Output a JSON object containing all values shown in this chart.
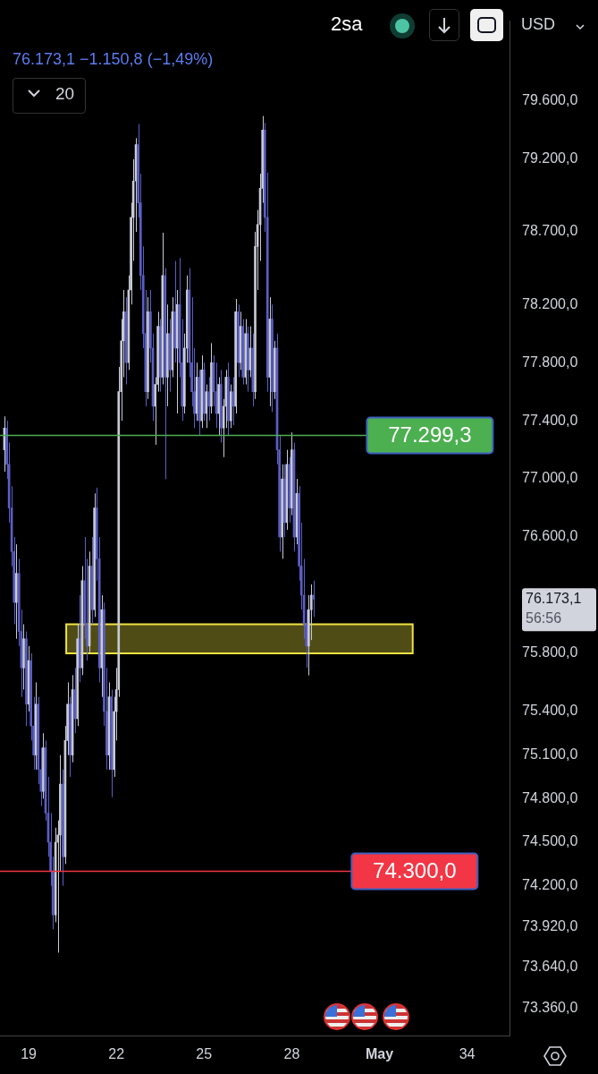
{
  "chart_data": {
    "type": "candlestick",
    "annotations": [
      "2sa",
      "76.173,1  −1.150,8 (−1,49%)",
      "20",
      "USD",
      "76.173,1",
      "56:56"
    ],
    "x": [
      18.17,
      18.25,
      18.33,
      18.42,
      18.5,
      18.58,
      18.67,
      18.75,
      18.83,
      18.92,
      19,
      19.08,
      19.17,
      19.25,
      19.33,
      19.42,
      19.5,
      19.58,
      19.67,
      19.75,
      19.83,
      19.92,
      20,
      20.08,
      20.17,
      20.25,
      20.33,
      20.42,
      20.5,
      20.58,
      20.67,
      20.75,
      20.83,
      20.92,
      21,
      21.08,
      21.17,
      21.25,
      21.33,
      21.42,
      21.5,
      21.58,
      21.67,
      21.75,
      21.83,
      21.92,
      22,
      22.08,
      22.17,
      22.25,
      22.33,
      22.42,
      22.5,
      22.58,
      22.67,
      22.75,
      22.83,
      22.92,
      23,
      23.08,
      23.17,
      23.25,
      23.33,
      23.42,
      23.5,
      23.58,
      23.67,
      23.75,
      23.83,
      23.92,
      24,
      24.08,
      24.17,
      24.25,
      24.33,
      24.42,
      24.5,
      24.58,
      24.67,
      24.75,
      24.83,
      24.92,
      25,
      25.08,
      25.17,
      25.25,
      25.33,
      25.42,
      25.5,
      25.58,
      25.67,
      25.75,
      25.83,
      25.92,
      26,
      26.08,
      26.17,
      26.25,
      26.33,
      26.42,
      26.5,
      26.58,
      26.67,
      26.75,
      26.83,
      26.92,
      27,
      27.08,
      27.17,
      27.25,
      27.33,
      27.42,
      27.5,
      27.58,
      27.67,
      27.75,
      27.83,
      27.92,
      28,
      28.08,
      28.17,
      28.25,
      28.33,
      28.42,
      28.5,
      28.58,
      28.67,
      28.75
    ],
    "ohlc": [
      [
        77200,
        77430,
        77050,
        77350
      ],
      [
        77350,
        77400,
        77000,
        77100
      ],
      [
        77100,
        77250,
        76700,
        76800
      ],
      [
        76800,
        76950,
        76400,
        76500
      ],
      [
        76500,
        76600,
        76000,
        76150
      ],
      [
        76150,
        76550,
        75900,
        76350
      ],
      [
        76350,
        76450,
        75850,
        75950
      ],
      [
        75950,
        76100,
        75500,
        75700
      ],
      [
        75700,
        76000,
        75550,
        75900
      ],
      [
        75900,
        75950,
        75300,
        75450
      ],
      [
        75450,
        75850,
        75400,
        75750
      ],
      [
        75750,
        75800,
        75200,
        75300
      ],
      [
        75300,
        75500,
        75000,
        75100
      ],
      [
        75100,
        75600,
        75000,
        75450
      ],
      [
        75450,
        75500,
        74900,
        75000
      ],
      [
        75000,
        75150,
        74750,
        74850
      ],
      [
        74850,
        75250,
        74800,
        75150
      ],
      [
        75150,
        75200,
        74650,
        74700
      ],
      [
        74700,
        74950,
        74400,
        74500
      ],
      [
        74500,
        74700,
        74200,
        74300
      ],
      [
        74300,
        74400,
        73900,
        74000
      ],
      [
        74000,
        74600,
        73950,
        74500
      ],
      [
        74500,
        74650,
        73740,
        74550
      ],
      [
        74550,
        75100,
        74300,
        74900
      ],
      [
        74900,
        75000,
        74200,
        74400
      ],
      [
        74400,
        75300,
        74350,
        75200
      ],
      [
        75200,
        75600,
        75100,
        75450
      ],
      [
        75450,
        75500,
        74950,
        75100
      ],
      [
        75100,
        75650,
        75050,
        75550
      ],
      [
        75550,
        75700,
        75250,
        75350
      ],
      [
        75350,
        76000,
        75300,
        75900
      ],
      [
        75900,
        76200,
        75600,
        75700
      ],
      [
        75700,
        76400,
        75650,
        76300
      ],
      [
        76300,
        76600,
        75900,
        76000
      ],
      [
        76000,
        76450,
        75750,
        75850
      ],
      [
        75850,
        76500,
        75800,
        76400
      ],
      [
        76400,
        76600,
        76000,
        76100
      ],
      [
        76100,
        76900,
        76050,
        76800
      ],
      [
        76800,
        76940,
        76300,
        76450
      ],
      [
        76450,
        76600,
        75600,
        75700
      ],
      [
        75700,
        76200,
        75500,
        76100
      ],
      [
        76100,
        76150,
        75300,
        75400
      ],
      [
        75400,
        75700,
        75000,
        75100
      ],
      [
        75100,
        75600,
        75000,
        75500
      ],
      [
        75500,
        75550,
        74810,
        75000
      ],
      [
        75000,
        75500,
        74950,
        75400
      ],
      [
        75400,
        75700,
        75200,
        75550
      ],
      [
        75550,
        77770,
        75500,
        77600
      ],
      [
        77600,
        78100,
        77400,
        77950
      ],
      [
        77950,
        78300,
        77700,
        78150
      ],
      [
        78150,
        78250,
        77650,
        77800
      ],
      [
        77800,
        78400,
        77750,
        78300
      ],
      [
        78300,
        78900,
        78200,
        78800
      ],
      [
        78800,
        79200,
        78500,
        79050
      ],
      [
        79050,
        79345,
        78700,
        79300
      ],
      [
        79300,
        79442,
        78800,
        78900
      ],
      [
        78900,
        79100,
        78300,
        78400
      ],
      [
        78400,
        78600,
        77900,
        78000
      ],
      [
        78000,
        78300,
        77500,
        77600
      ],
      [
        77600,
        78250,
        77550,
        78150
      ],
      [
        78150,
        78300,
        77800,
        77900
      ],
      [
        77900,
        78000,
        77400,
        77500
      ],
      [
        77500,
        77700,
        77235,
        77650
      ],
      [
        77650,
        78150,
        77600,
        78050
      ],
      [
        78050,
        78100,
        77600,
        77700
      ],
      [
        77700,
        78694,
        77650,
        78400
      ],
      [
        78400,
        78450,
        76998,
        77700
      ],
      [
        77700,
        78200,
        77500,
        78000
      ],
      [
        78000,
        78100,
        77600,
        77750
      ],
      [
        77750,
        78250,
        77700,
        78150
      ],
      [
        78150,
        78500,
        77800,
        77900
      ],
      [
        77900,
        78300,
        77450,
        78200
      ],
      [
        78200,
        78520,
        77700,
        77800
      ],
      [
        77800,
        78100,
        77400,
        77500
      ],
      [
        77500,
        78000,
        77450,
        77900
      ],
      [
        77900,
        78400,
        77800,
        78300
      ],
      [
        78300,
        78450,
        77700,
        77800
      ],
      [
        77800,
        78250,
        77500,
        77600
      ],
      [
        77600,
        77900,
        77350,
        77450
      ],
      [
        77450,
        77800,
        77400,
        77700
      ],
      [
        77700,
        77750,
        77300,
        77400
      ],
      [
        77400,
        77850,
        77350,
        77750
      ],
      [
        77750,
        77800,
        77400,
        77450
      ],
      [
        77450,
        77650,
        77350,
        77600
      ],
      [
        77600,
        77700,
        77400,
        77500
      ],
      [
        77500,
        77934,
        77450,
        77800
      ],
      [
        77800,
        77850,
        77500,
        77600
      ],
      [
        77600,
        77800,
        77350,
        77450
      ],
      [
        77450,
        77700,
        77300,
        77650
      ],
      [
        77650,
        77750,
        77250,
        77350
      ],
      [
        77350,
        77550,
        77150,
        77500
      ],
      [
        77500,
        77750,
        77350,
        77700
      ],
      [
        77700,
        77800,
        77300,
        77400
      ],
      [
        77400,
        77650,
        77350,
        77600
      ],
      [
        77600,
        77700,
        77370,
        77500
      ],
      [
        77500,
        78238,
        77450,
        78150
      ],
      [
        78150,
        78200,
        77700,
        77800
      ],
      [
        77800,
        78150,
        77750,
        78050
      ],
      [
        78050,
        78100,
        77650,
        77700
      ],
      [
        77700,
        78100,
        77650,
        78000
      ],
      [
        78000,
        78050,
        77600,
        77750
      ],
      [
        77750,
        78050,
        77700,
        77900
      ],
      [
        77900,
        78000,
        77500,
        77600
      ],
      [
        77600,
        78700,
        77550,
        78600
      ],
      [
        78600,
        78850,
        78300,
        78750
      ],
      [
        78750,
        79100,
        78500,
        79000
      ],
      [
        79000,
        79497,
        78900,
        79400
      ],
      [
        79400,
        79450,
        78700,
        78800
      ],
      [
        78800,
        79108,
        77600,
        77700
      ],
      [
        77700,
        78250,
        77500,
        78100
      ],
      [
        78100,
        78200,
        77460,
        77600
      ],
      [
        77600,
        77950,
        77550,
        77900
      ],
      [
        77900,
        78000,
        77100,
        77200
      ],
      [
        77200,
        77300,
        76500,
        76600
      ],
      [
        76600,
        77100,
        76450,
        77000
      ],
      [
        77000,
        77100,
        76600,
        76700
      ],
      [
        76700,
        77200,
        76650,
        77100
      ],
      [
        77100,
        77150,
        76700,
        76800
      ],
      [
        76800,
        77320,
        76750,
        77200
      ],
      [
        77200,
        77250,
        76500,
        76600
      ],
      [
        76600,
        77000,
        76550,
        76900
      ],
      [
        76900,
        76950,
        76300,
        76400
      ],
      [
        76400,
        76700,
        76100,
        76200
      ],
      [
        76200,
        76450,
        75900,
        76000
      ],
      [
        76000,
        76100,
        75700,
        75850
      ],
      [
        75850,
        76200,
        75648,
        76100
      ],
      [
        76100,
        76274,
        75891,
        76200
      ],
      [
        76200,
        76300,
        76050,
        76173.1
      ]
    ],
    "colors": [
      "#c8cad6",
      "#5b5fc4",
      "#5b5fc4",
      "#5b5fc4",
      "#5b5fc4",
      "#c8cad6",
      "#5b5fc4",
      "#5b5fc4",
      "#c8cad6",
      "#5b5fc4",
      "#c8cad6",
      "#5b5fc4",
      "#5b5fc4",
      "#c8cad6",
      "#5b5fc4",
      "#5b5fc4",
      "#c8cad6",
      "#5b5fc4",
      "#5b5fc4",
      "#5b5fc4",
      "#5b5fc4",
      "#c8cad6",
      "#c8cad6",
      "#c8cad6",
      "#5b5fc4",
      "#c8cad6",
      "#c8cad6",
      "#5b5fc4",
      "#c8cad6",
      "#5b5fc4",
      "#c8cad6",
      "#5b5fc4",
      "#c8cad6",
      "#5b5fc4",
      "#5b5fc4",
      "#c8cad6",
      "#5b5fc4",
      "#c8cad6",
      "#5b5fc4",
      "#5b5fc4",
      "#c8cad6",
      "#5b5fc4",
      "#5b5fc4",
      "#c8cad6",
      "#5b5fc4",
      "#c8cad6",
      "#c8cad6",
      "#c8cad6",
      "#c8cad6",
      "#c8cad6",
      "#5b5fc4",
      "#c8cad6",
      "#c8cad6",
      "#c8cad6",
      "#c8cad6",
      "#5b5fc4",
      "#5b5fc4",
      "#5b5fc4",
      "#5b5fc4",
      "#c8cad6",
      "#5b5fc4",
      "#5b5fc4",
      "#c8cad6",
      "#c8cad6",
      "#5b5fc4",
      "#c8cad6",
      "#5b5fc4",
      "#c8cad6",
      "#5b5fc4",
      "#c8cad6",
      "#5b5fc4",
      "#c8cad6",
      "#5b5fc4",
      "#5b5fc4",
      "#c8cad6",
      "#c8cad6",
      "#5b5fc4",
      "#5b5fc4",
      "#5b5fc4",
      "#c8cad6",
      "#5b5fc4",
      "#c8cad6",
      "#5b5fc4",
      "#c8cad6",
      "#5b5fc4",
      "#c8cad6",
      "#5b5fc4",
      "#5b5fc4",
      "#c8cad6",
      "#5b5fc4",
      "#c8cad6",
      "#c8cad6",
      "#5b5fc4",
      "#c8cad6",
      "#5b5fc4",
      "#c8cad6",
      "#5b5fc4",
      "#c8cad6",
      "#5b5fc4",
      "#c8cad6",
      "#5b5fc4",
      "#c8cad6",
      "#5b5fc4",
      "#c8cad6",
      "#c8cad6",
      "#c8cad6",
      "#c8cad6",
      "#5b5fc4",
      "#5b5fc4",
      "#c8cad6",
      "#5b5fc4",
      "#c8cad6",
      "#5b5fc4",
      "#5b5fc4",
      "#c8cad6",
      "#5b5fc4",
      "#c8cad6",
      "#5b5fc4",
      "#c8cad6",
      "#5b5fc4",
      "#c8cad6",
      "#5b5fc4",
      "#5b5fc4",
      "#5b5fc4",
      "#5b5fc4",
      "#c8cad6",
      "#c8cad6",
      "#5b5fc4"
    ],
    "xlim": [
      18.02,
      35.45
    ],
    "xticks": [
      19,
      22,
      25,
      28,
      {
        "value": 31,
        "label": "May"
      },
      34
    ],
    "ylim": [
      73170,
      80150
    ],
    "yticks": [
      {
        "value": 79600,
        "label": "79.600,0"
      },
      {
        "value": 79200,
        "label": "79.200,0"
      },
      {
        "value": 78700,
        "label": "78.700,0"
      },
      {
        "value": 78200,
        "label": "78.200,0"
      },
      {
        "value": 77800,
        "label": "77.800,0"
      },
      {
        "value": 77400,
        "label": "77.400,0"
      },
      {
        "value": 77000,
        "label": "77.000,0"
      },
      {
        "value": 76600,
        "label": "76.600,0"
      },
      {
        "value": 75800,
        "label": "75.800,0"
      },
      {
        "value": 75400,
        "label": "75.400,0"
      },
      {
        "value": 75100,
        "label": "75.100,0"
      },
      {
        "value": 74800,
        "label": "74.800,0"
      },
      {
        "value": 74500,
        "label": "74.500,0"
      },
      {
        "value": 74200,
        "label": "74.200,0"
      },
      {
        "value": 73920,
        "label": "73.920,0"
      },
      {
        "value": 73640,
        "label": "73.640,0"
      },
      {
        "value": 73360,
        "label": "73.360,0"
      }
    ],
    "ref_lines": [
      {
        "axis": "y",
        "value": 77299.3,
        "label": "77.299,3",
        "color": "#4caf50"
      },
      {
        "axis": "y",
        "value": 74300,
        "label": "74.300,0",
        "color": "#f23645"
      }
    ],
    "bands": [
      {
        "axis": "y",
        "from": 75800,
        "to": 76000,
        "color": "#f0e442"
      }
    ]
  }
}
